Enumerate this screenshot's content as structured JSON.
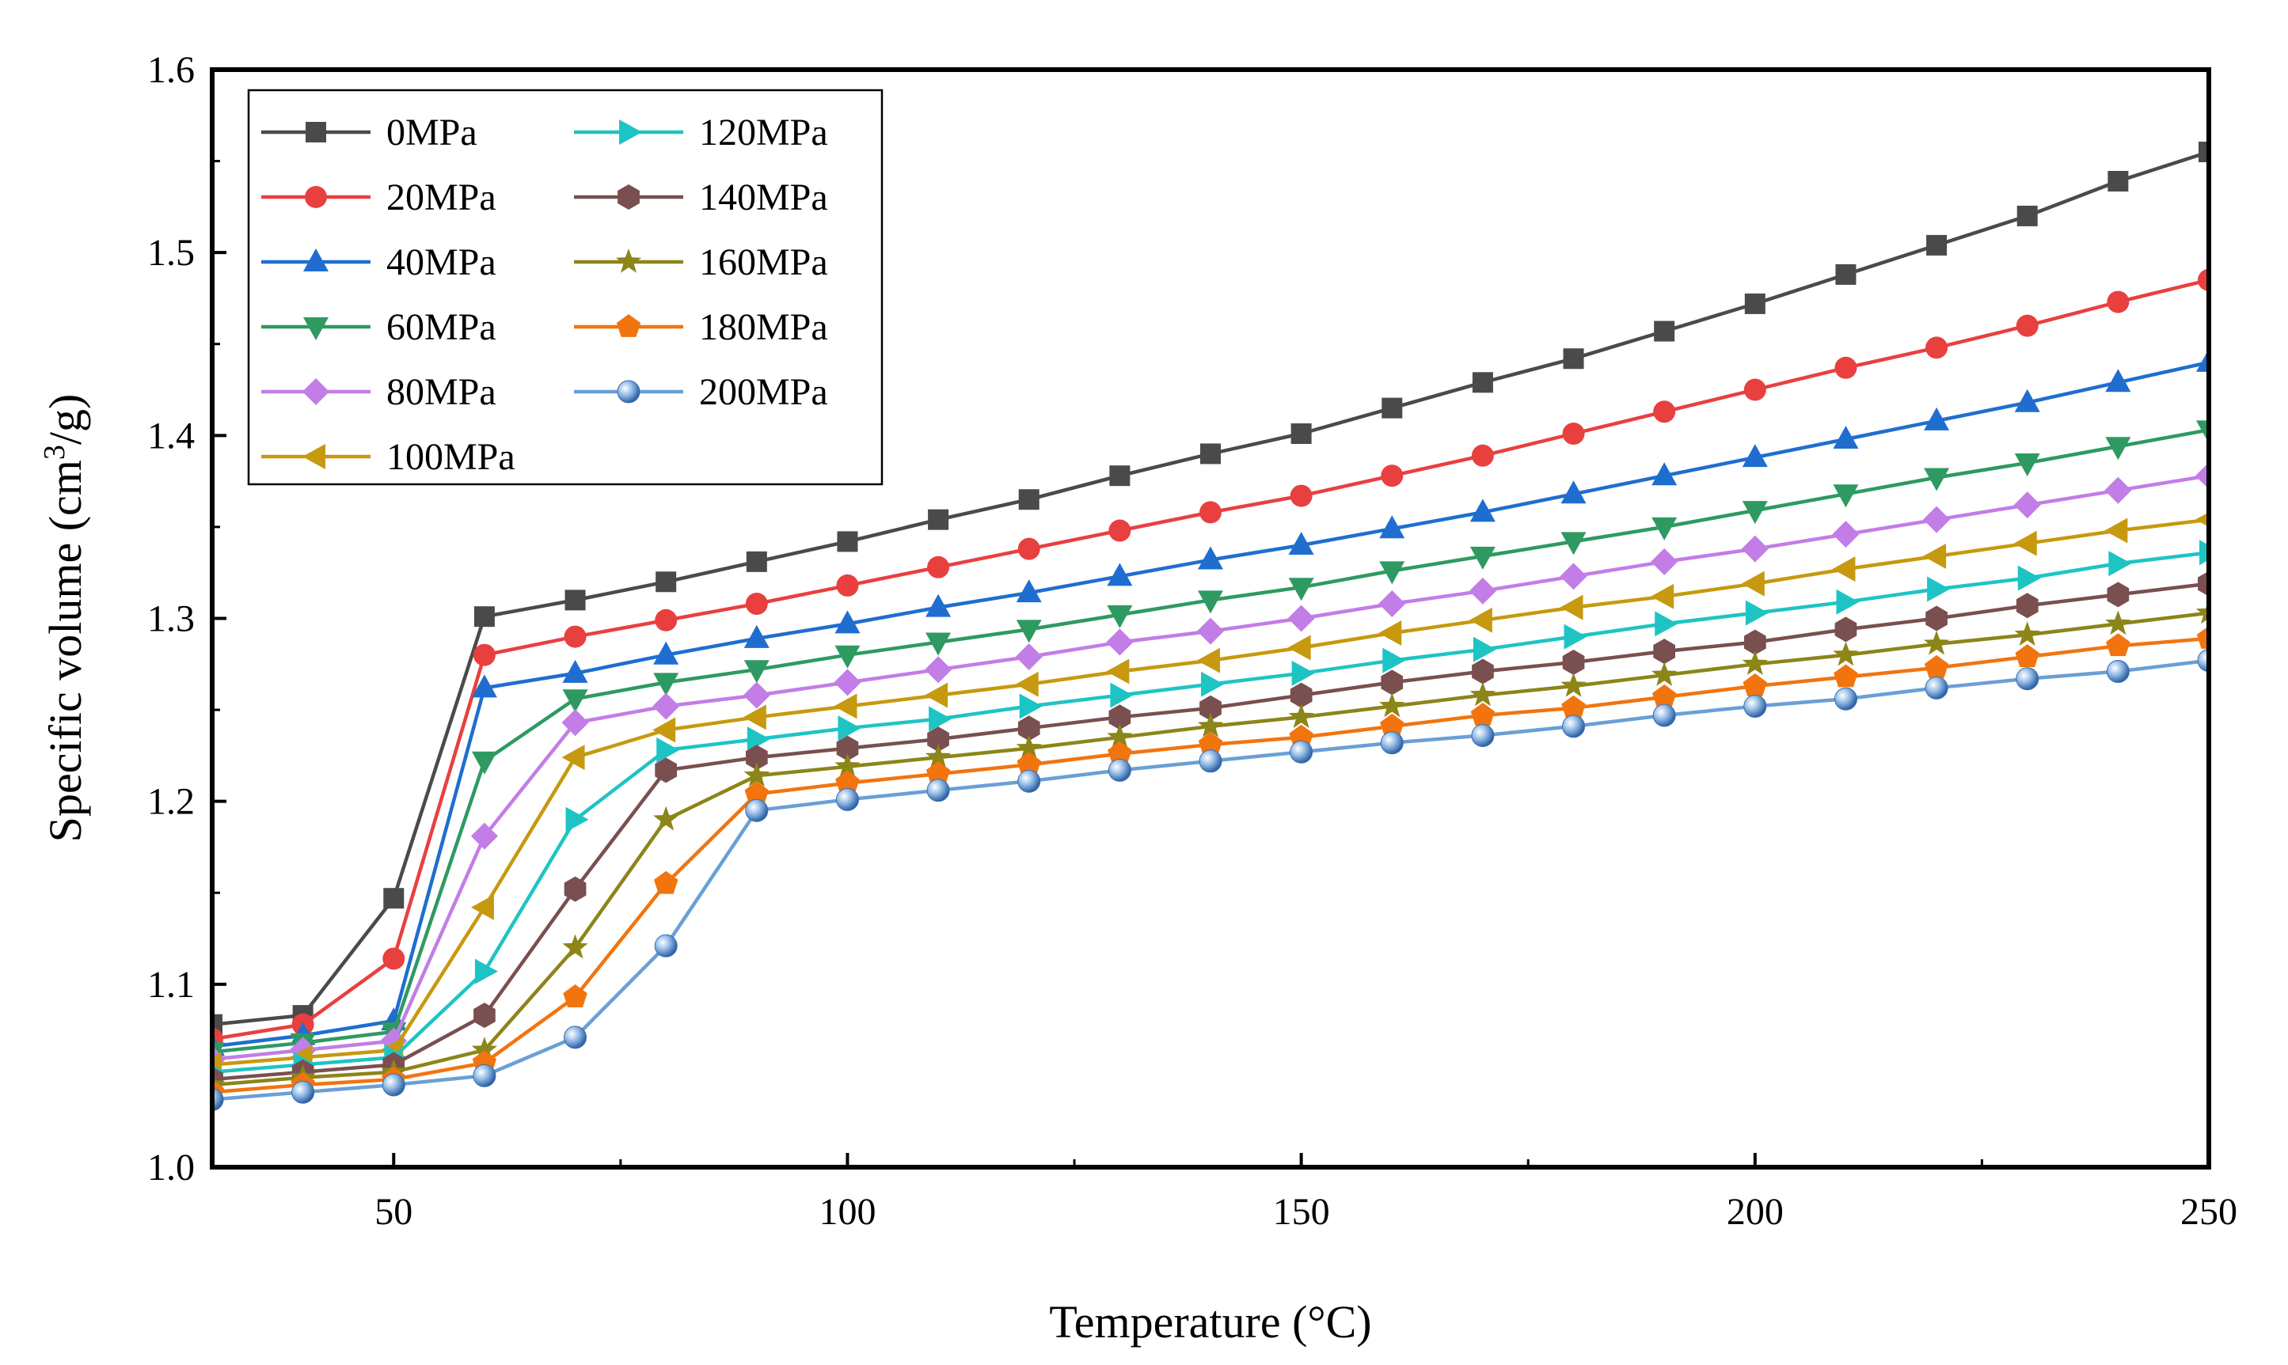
{
  "chart_data": {
    "type": "line",
    "title": "",
    "xlabel": "Temperature (°C)",
    "ylabel_prefix": "Specific volume (cm",
    "ylabel_sup": "3",
    "ylabel_suffix": "/g)",
    "xlim": [
      30,
      250
    ],
    "ylim": [
      1.0,
      1.6
    ],
    "x_ticks": [
      50,
      100,
      150,
      200,
      250
    ],
    "x_tick_labels": [
      "50",
      "100",
      "150",
      "200",
      "250"
    ],
    "y_ticks": [
      1.0,
      1.1,
      1.2,
      1.3,
      1.4,
      1.5,
      1.6
    ],
    "y_tick_labels": [
      "1.0",
      "1.1",
      "1.2",
      "1.3",
      "1.4",
      "1.5",
      "1.6"
    ],
    "legend_position": "top-left",
    "x": [
      30,
      40,
      50,
      60,
      70,
      80,
      90,
      100,
      110,
      120,
      130,
      140,
      150,
      160,
      170,
      180,
      190,
      200,
      210,
      220,
      230,
      240,
      250
    ],
    "series": [
      {
        "name": "0MPa",
        "marker": "square",
        "color": "#4a4a4a",
        "values": [
          1.078,
          1.083,
          1.147,
          1.301,
          1.31,
          1.32,
          1.331,
          1.342,
          1.354,
          1.365,
          1.378,
          1.39,
          1.401,
          1.415,
          1.429,
          1.442,
          1.457,
          1.472,
          1.488,
          1.504,
          1.52,
          1.539,
          1.555
        ]
      },
      {
        "name": "20MPa",
        "marker": "circle",
        "color": "#e8403f",
        "values": [
          1.07,
          1.078,
          1.114,
          1.28,
          1.29,
          1.299,
          1.308,
          1.318,
          1.328,
          1.338,
          1.348,
          1.358,
          1.367,
          1.378,
          1.389,
          1.401,
          1.413,
          1.425,
          1.437,
          1.448,
          1.46,
          1.473,
          1.485
        ]
      },
      {
        "name": "40MPa",
        "marker": "triangle-up",
        "color": "#1f6ecf",
        "values": [
          1.066,
          1.072,
          1.08,
          1.262,
          1.27,
          1.28,
          1.289,
          1.297,
          1.306,
          1.314,
          1.323,
          1.332,
          1.34,
          1.349,
          1.358,
          1.368,
          1.378,
          1.388,
          1.398,
          1.408,
          1.418,
          1.429,
          1.44
        ]
      },
      {
        "name": "60MPa",
        "marker": "triangle-down",
        "color": "#2e9a61",
        "values": [
          1.063,
          1.068,
          1.074,
          1.222,
          1.256,
          1.265,
          1.272,
          1.28,
          1.287,
          1.294,
          1.302,
          1.31,
          1.317,
          1.326,
          1.334,
          1.342,
          1.35,
          1.359,
          1.368,
          1.377,
          1.385,
          1.394,
          1.403
        ]
      },
      {
        "name": "80MPa",
        "marker": "diamond",
        "color": "#c27de6",
        "values": [
          1.059,
          1.064,
          1.069,
          1.181,
          1.243,
          1.252,
          1.258,
          1.265,
          1.272,
          1.279,
          1.287,
          1.293,
          1.3,
          1.308,
          1.315,
          1.323,
          1.331,
          1.338,
          1.346,
          1.354,
          1.362,
          1.37,
          1.378
        ]
      },
      {
        "name": "100MPa",
        "marker": "triangle-left",
        "color": "#c6990f",
        "values": [
          1.056,
          1.06,
          1.064,
          1.142,
          1.224,
          1.239,
          1.246,
          1.252,
          1.258,
          1.264,
          1.271,
          1.277,
          1.284,
          1.292,
          1.299,
          1.306,
          1.312,
          1.319,
          1.327,
          1.334,
          1.341,
          1.348,
          1.354
        ]
      },
      {
        "name": "120MPa",
        "marker": "triangle-right",
        "color": "#1ec4c4",
        "values": [
          1.052,
          1.056,
          1.06,
          1.107,
          1.19,
          1.228,
          1.234,
          1.24,
          1.245,
          1.252,
          1.258,
          1.264,
          1.27,
          1.277,
          1.283,
          1.29,
          1.297,
          1.303,
          1.309,
          1.316,
          1.322,
          1.33,
          1.336
        ]
      },
      {
        "name": "140MPa",
        "marker": "hexagon",
        "color": "#7a4f4f",
        "values": [
          1.048,
          1.052,
          1.056,
          1.083,
          1.152,
          1.217,
          1.224,
          1.229,
          1.234,
          1.24,
          1.246,
          1.251,
          1.258,
          1.265,
          1.271,
          1.276,
          1.282,
          1.287,
          1.294,
          1.3,
          1.307,
          1.313,
          1.319
        ]
      },
      {
        "name": "160MPa",
        "marker": "star",
        "color": "#8c8518",
        "values": [
          1.045,
          1.049,
          1.052,
          1.064,
          1.12,
          1.19,
          1.214,
          1.219,
          1.224,
          1.229,
          1.235,
          1.241,
          1.246,
          1.252,
          1.258,
          1.263,
          1.269,
          1.275,
          1.28,
          1.286,
          1.291,
          1.297,
          1.303
        ]
      },
      {
        "name": "180MPa",
        "marker": "pentagon",
        "color": "#f2740f",
        "values": [
          1.041,
          1.045,
          1.048,
          1.057,
          1.093,
          1.155,
          1.204,
          1.21,
          1.215,
          1.22,
          1.226,
          1.231,
          1.235,
          1.241,
          1.247,
          1.251,
          1.257,
          1.263,
          1.268,
          1.273,
          1.279,
          1.285,
          1.289
        ]
      },
      {
        "name": "200MPa",
        "marker": "sphere",
        "color": "#6a9fd6",
        "values": [
          1.037,
          1.041,
          1.045,
          1.05,
          1.071,
          1.121,
          1.195,
          1.201,
          1.206,
          1.211,
          1.217,
          1.222,
          1.227,
          1.232,
          1.236,
          1.241,
          1.247,
          1.252,
          1.256,
          1.262,
          1.267,
          1.271,
          1.277
        ]
      }
    ]
  }
}
